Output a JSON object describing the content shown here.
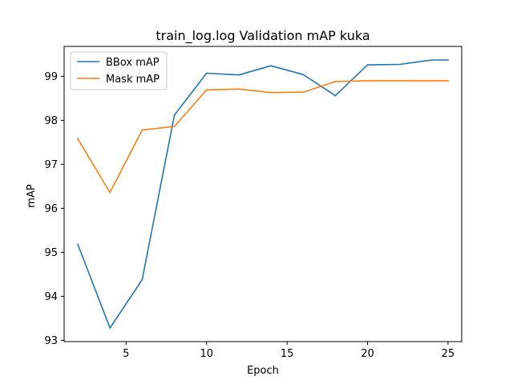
{
  "chart_data": {
    "type": "line",
    "title": "train_log.log Validation mAP kuka",
    "xlabel": "Epoch",
    "ylabel": "mAP",
    "xlim": [
      1.15,
      25.85
    ],
    "ylim": [
      92.97,
      99.68
    ],
    "xticks": [
      5,
      10,
      15,
      20,
      25
    ],
    "yticks": [
      93,
      94,
      95,
      96,
      97,
      98,
      99
    ],
    "x": [
      2,
      4,
      6,
      8,
      10,
      12,
      14,
      16,
      18,
      20,
      22,
      24,
      25
    ],
    "series": [
      {
        "name": "BBox mAP",
        "color": "#1f77b4",
        "values": [
          95.18,
          93.28,
          94.38,
          98.12,
          99.07,
          99.03,
          99.24,
          99.04,
          98.56,
          99.26,
          99.27,
          99.37,
          99.37
        ]
      },
      {
        "name": "Mask mAP",
        "color": "#ff7f0e",
        "values": [
          97.58,
          96.36,
          97.78,
          97.86,
          98.69,
          98.71,
          98.63,
          98.64,
          98.88,
          98.9,
          98.9,
          98.9,
          98.9
        ]
      }
    ],
    "grid": false,
    "legend_position": "top-left"
  }
}
